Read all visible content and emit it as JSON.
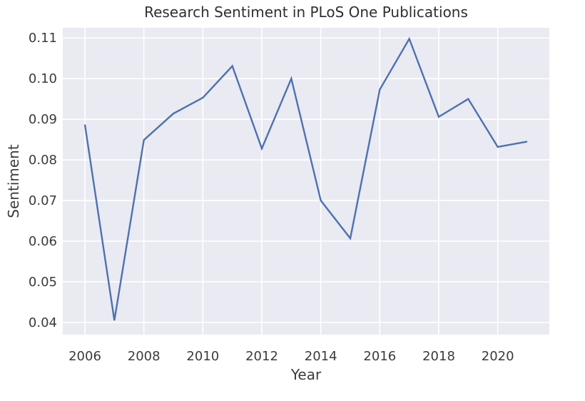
{
  "chart_data": {
    "type": "line",
    "title": "Research Sentiment in PLoS One Publications",
    "xlabel": "Year",
    "ylabel": "Sentiment",
    "x": [
      2006,
      2007,
      2008,
      2009,
      2010,
      2011,
      2012,
      2013,
      2014,
      2015,
      2016,
      2017,
      2018,
      2019,
      2020,
      2021
    ],
    "series": [
      {
        "values": [
          0.0887,
          0.0405,
          0.0849,
          0.0914,
          0.0953,
          0.1031,
          0.0828,
          0.1,
          0.07,
          0.0607,
          0.0973,
          0.1098,
          0.0906,
          0.095,
          0.0832,
          0.0845
        ],
        "color": "#4c72b0"
      }
    ],
    "xticks": [
      "2006",
      "2008",
      "2010",
      "2012",
      "2014",
      "2016",
      "2018",
      "2020"
    ],
    "yticks": [
      "0.04",
      "0.05",
      "0.06",
      "0.07",
      "0.08",
      "0.09",
      "0.10",
      "0.11"
    ],
    "xlim": [
      2005.25,
      2021.75
    ],
    "ylim": [
      0.037,
      0.1125
    ],
    "grid": true,
    "colors": {
      "background": "#eaeaf2",
      "grid": "#ffffff"
    }
  }
}
